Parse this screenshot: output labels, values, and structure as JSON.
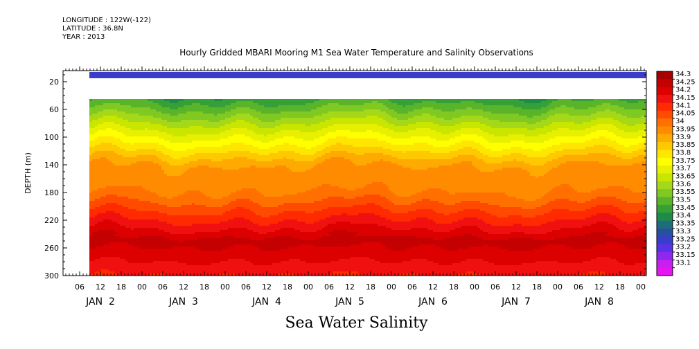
{
  "header": {
    "longitude": "LONGITUDE : 122W(-122)",
    "latitude": "LATITUDE : 36.8N",
    "year": "YEAR : 2013"
  },
  "chart_data": {
    "type": "heatmap",
    "title": "Hourly Gridded MBARI Mooring M1 Sea Water Temperature and Salinity Observations",
    "xlabel": "Sea Water Salinity",
    "ylabel": "DEPTH (m)",
    "ylim": [
      300,
      4
    ],
    "y_ticks": [
      20,
      60,
      100,
      140,
      180,
      220,
      260,
      300
    ],
    "x_hour_ticks": [
      "06",
      "12",
      "18",
      "00",
      "06",
      "12",
      "18",
      "00",
      "06",
      "12",
      "18",
      "00",
      "06",
      "12",
      "18",
      "00",
      "06",
      "12",
      "18",
      "00",
      "06",
      "12",
      "18",
      "00",
      "06",
      "12",
      "18",
      "00",
      "06",
      "12",
      "18",
      "00"
    ],
    "x_day_labels": [
      "JAN  2",
      "JAN  3",
      "JAN  4",
      "JAN  5",
      "JAN  6",
      "JAN  7",
      "JAN  8"
    ],
    "colorbar": {
      "levels": [
        34.3,
        34.25,
        34.2,
        34.15,
        34.1,
        34.05,
        34,
        33.95,
        33.9,
        33.85,
        33.8,
        33.75,
        33.7,
        33.65,
        33.6,
        33.55,
        33.5,
        33.45,
        33.4,
        33.35,
        33.3,
        33.25,
        33.2,
        33.15,
        33.1
      ],
      "colors": [
        "#a80000",
        "#c40000",
        "#dd0000",
        "#f01010",
        "#ff2a00",
        "#ff4a00",
        "#ff7000",
        "#ff8c00",
        "#ffaa00",
        "#ffc800",
        "#ffe600",
        "#ffff00",
        "#e6f000",
        "#c8e600",
        "#a6d81a",
        "#80c822",
        "#5ab42a",
        "#34a036",
        "#1e8c46",
        "#1e6e7a",
        "#2850a0",
        "#3a3ccc",
        "#5a32e6",
        "#8c28f0",
        "#c81ef0",
        "#e614f0"
      ]
    },
    "profile": [
      {
        "depth": 8,
        "value": 33.28
      },
      {
        "depth": 40,
        "value": 33.45
      },
      {
        "depth": 60,
        "value": 33.55
      },
      {
        "depth": 80,
        "value": 33.65
      },
      {
        "depth": 100,
        "value": 33.75
      },
      {
        "depth": 120,
        "value": 33.85
      },
      {
        "depth": 140,
        "value": 33.95
      },
      {
        "depth": 180,
        "value": 34.0
      },
      {
        "depth": 220,
        "value": 34.15
      },
      {
        "depth": 250,
        "value": 34.27
      },
      {
        "depth": 280,
        "value": 34.2
      },
      {
        "depth": 300,
        "value": 34.15
      }
    ]
  }
}
